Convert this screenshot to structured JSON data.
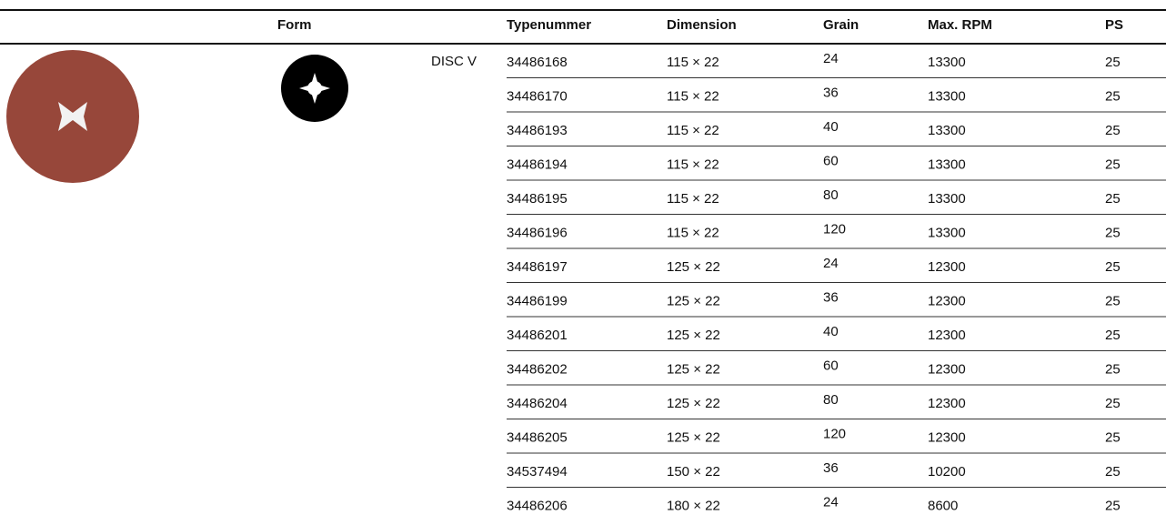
{
  "form_label": "DISC V",
  "table": {
    "header": [
      "Form",
      "Typenummer",
      "Dimension",
      "Grain",
      "Max. RPM",
      "PS"
    ],
    "rows": [
      [
        "34486168",
        "115 × 22",
        "24",
        "13300",
        "25"
      ],
      [
        "34486170",
        "115 × 22",
        "36",
        "13300",
        "25"
      ],
      [
        "34486193",
        "115 × 22",
        "40",
        "13300",
        "25"
      ],
      [
        "34486194",
        "115 × 22",
        "60",
        "13300",
        "25"
      ],
      [
        "34486195",
        "115 × 22",
        "80",
        "13300",
        "25"
      ],
      [
        "34486196",
        "115 × 22",
        "120",
        "13300",
        "25"
      ],
      [
        "34486197",
        "125 × 22",
        "24",
        "12300",
        "25"
      ],
      [
        "34486199",
        "125 × 22",
        "36",
        "12300",
        "25"
      ],
      [
        "34486201",
        "125 × 22",
        "40",
        "12300",
        "25"
      ],
      [
        "34486202",
        "125 × 22",
        "60",
        "12300",
        "25"
      ],
      [
        "34486204",
        "125 × 22",
        "80",
        "12300",
        "25"
      ],
      [
        "34486205",
        "125 × 22",
        "120",
        "12300",
        "25"
      ],
      [
        "34537494",
        "150 × 22",
        "36",
        "10200",
        "25"
      ],
      [
        "34486206",
        "180 × 22",
        "24",
        "8600",
        "25"
      ]
    ]
  }
}
